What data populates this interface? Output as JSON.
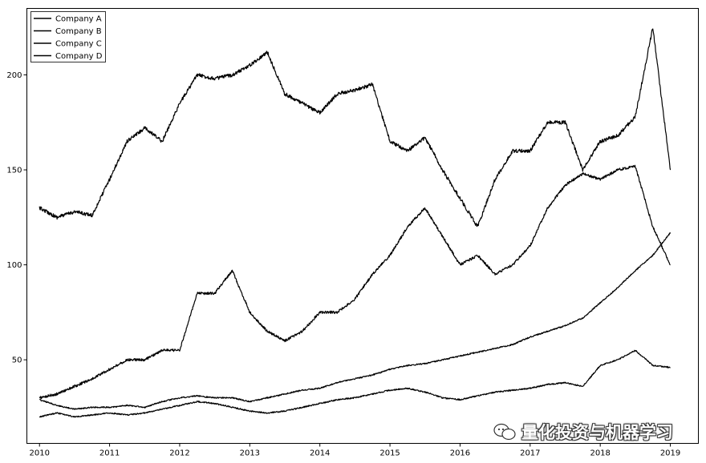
{
  "chart_data": {
    "type": "line",
    "title": "",
    "xlabel": "",
    "ylabel": "",
    "xlim": [
      2009.82,
      2019.4
    ],
    "ylim": [
      6,
      235
    ],
    "x_ticks": [
      "2010",
      "2011",
      "2012",
      "2013",
      "2014",
      "2015",
      "2016",
      "2017",
      "2018",
      "2019"
    ],
    "y_ticks": [
      50,
      100,
      150,
      200
    ],
    "grid": false,
    "legend_position": "top-left",
    "line_color": "#000000",
    "series": [
      {
        "name": "Company A",
        "x": [
          2010.0,
          2010.25,
          2010.5,
          2010.75,
          2011.0,
          2011.25,
          2011.5,
          2011.75,
          2012.0,
          2012.25,
          2012.5,
          2012.75,
          2013.0,
          2013.25,
          2013.5,
          2013.75,
          2014.0,
          2014.25,
          2014.5,
          2014.75,
          2015.0,
          2015.25,
          2015.5,
          2015.75,
          2016.0,
          2016.25,
          2016.5,
          2016.75,
          2017.0,
          2017.25,
          2017.5,
          2017.75,
          2018.0,
          2018.25,
          2018.5,
          2018.75,
          2019.0
        ],
        "y": [
          130,
          125,
          128,
          126,
          145,
          165,
          172,
          165,
          185,
          200,
          198,
          200,
          205,
          212,
          190,
          185,
          180,
          190,
          192,
          195,
          165,
          160,
          167,
          150,
          135,
          120,
          145,
          160,
          160,
          175,
          175,
          150,
          165,
          168,
          178,
          225,
          150
        ]
      },
      {
        "name": "Company B",
        "x": [
          2010.0,
          2010.25,
          2010.5,
          2010.75,
          2011.0,
          2011.25,
          2011.5,
          2011.75,
          2012.0,
          2012.25,
          2012.5,
          2012.75,
          2013.0,
          2013.25,
          2013.5,
          2013.75,
          2014.0,
          2014.25,
          2014.5,
          2014.75,
          2015.0,
          2015.25,
          2015.5,
          2015.75,
          2016.0,
          2016.25,
          2016.5,
          2016.75,
          2017.0,
          2017.25,
          2017.5,
          2017.75,
          2018.0,
          2018.25,
          2018.5,
          2018.75,
          2019.0
        ],
        "y": [
          30,
          32,
          36,
          40,
          45,
          50,
          50,
          55,
          55,
          85,
          85,
          97,
          75,
          65,
          60,
          65,
          75,
          75,
          82,
          95,
          105,
          120,
          130,
          115,
          100,
          105,
          95,
          100,
          110,
          130,
          142,
          148,
          145,
          150,
          152,
          120,
          100
        ]
      },
      {
        "name": "Company C",
        "x": [
          2010.0,
          2010.25,
          2010.5,
          2010.75,
          2011.0,
          2011.25,
          2011.5,
          2011.75,
          2012.0,
          2012.25,
          2012.5,
          2012.75,
          2013.0,
          2013.25,
          2013.5,
          2013.75,
          2014.0,
          2014.25,
          2014.5,
          2014.75,
          2015.0,
          2015.25,
          2015.5,
          2015.75,
          2016.0,
          2016.25,
          2016.5,
          2016.75,
          2017.0,
          2017.25,
          2017.5,
          2017.75,
          2018.0,
          2018.25,
          2018.5,
          2018.75,
          2019.0
        ],
        "y": [
          29,
          26,
          24,
          25,
          25,
          26,
          25,
          28,
          30,
          31,
          30,
          30,
          28,
          30,
          32,
          34,
          35,
          38,
          40,
          42,
          45,
          47,
          48,
          50,
          52,
          54,
          56,
          58,
          62,
          65,
          68,
          72,
          80,
          88,
          97,
          105,
          117
        ]
      },
      {
        "name": "Company D",
        "x": [
          2010.0,
          2010.25,
          2010.5,
          2010.75,
          2011.0,
          2011.25,
          2011.5,
          2011.75,
          2012.0,
          2012.25,
          2012.5,
          2012.75,
          2013.0,
          2013.25,
          2013.5,
          2013.75,
          2014.0,
          2014.25,
          2014.5,
          2014.75,
          2015.0,
          2015.25,
          2015.5,
          2015.75,
          2016.0,
          2016.25,
          2016.5,
          2016.75,
          2017.0,
          2017.25,
          2017.5,
          2017.75,
          2018.0,
          2018.25,
          2018.5,
          2018.75,
          2019.0
        ],
        "y": [
          20,
          22,
          20,
          21,
          22,
          21,
          22,
          24,
          26,
          28,
          27,
          25,
          23,
          22,
          23,
          25,
          27,
          29,
          30,
          32,
          34,
          35,
          33,
          30,
          29,
          31,
          33,
          34,
          35,
          37,
          38,
          36,
          47,
          50,
          55,
          47,
          46
        ]
      }
    ]
  },
  "watermark": {
    "text": "量化投资与机器学习",
    "icon": "wechat-bubble-icon"
  }
}
